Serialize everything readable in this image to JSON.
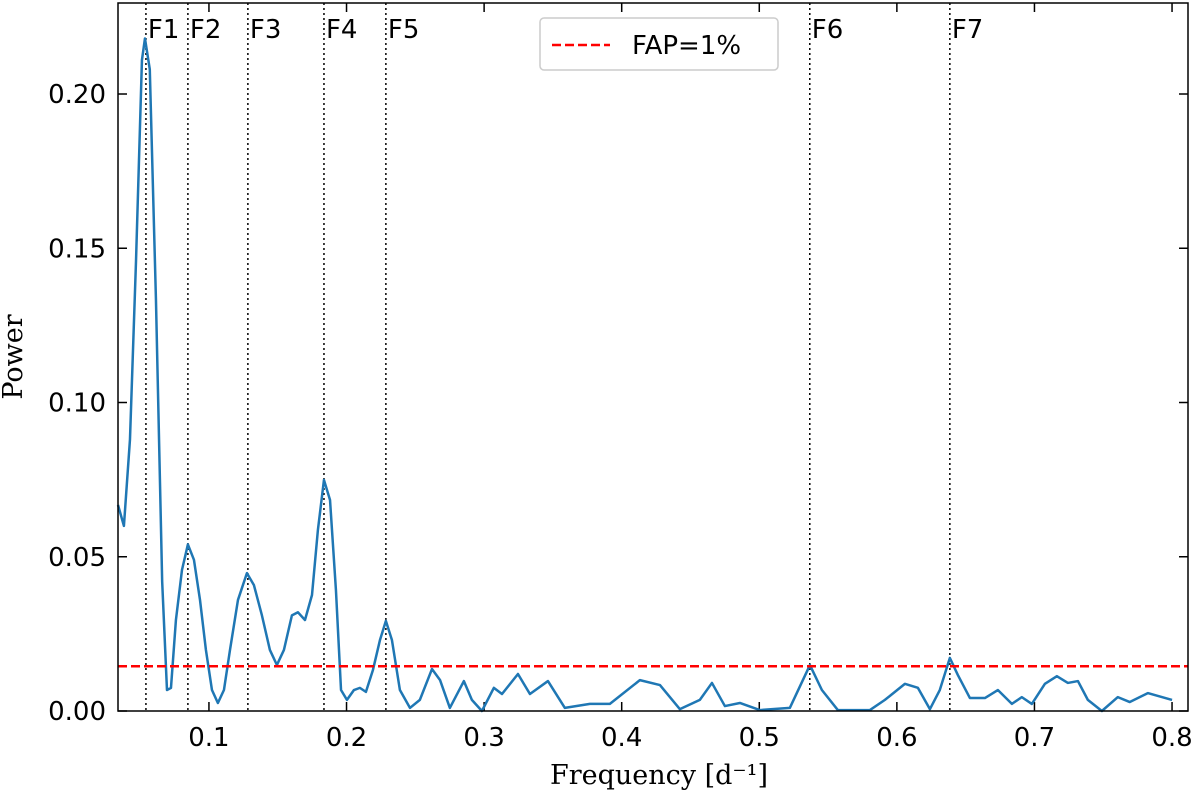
{
  "chart_data": {
    "type": "line",
    "xlabel": "Frequency [d⁻¹]",
    "ylabel": "Power",
    "xlim": [
      0.0339,
      0.8116
    ],
    "ylim": [
      0,
      0.2295
    ],
    "xticks": [
      0.1,
      0.2,
      0.3,
      0.4,
      0.5,
      0.6,
      0.7,
      0.8
    ],
    "yticks": [
      {
        "value": 0,
        "label": "0.00"
      },
      0.05,
      {
        "value": 0.1,
        "label": "0.10"
      },
      0.15,
      {
        "value": 0.2,
        "label": "0.20"
      }
    ],
    "legend": "upper center",
    "series": [
      {
        "color": "#1f77b4",
        "x": [
          0.0339,
          0.0382,
          0.0426,
          0.047,
          0.0513,
          0.0535,
          0.057,
          0.0615,
          0.066,
          0.0695,
          0.0724,
          0.076,
          0.0804,
          0.0847,
          0.0891,
          0.0935,
          0.0978,
          0.1022,
          0.1065,
          0.1109,
          0.1153,
          0.1211,
          0.1276,
          0.1327,
          0.1385,
          0.1443,
          0.1494,
          0.1545,
          0.1603,
          0.1647,
          0.1698,
          0.1749,
          0.1792,
          0.1836,
          0.188,
          0.1923,
          0.196,
          0.2003,
          0.2054,
          0.2097,
          0.2141,
          0.2192,
          0.2243,
          0.2286,
          0.233,
          0.2388,
          0.2461,
          0.2533,
          0.2621,
          0.268,
          0.2751,
          0.2853,
          0.2911,
          0.2984,
          0.3071,
          0.313,
          0.3246,
          0.3333,
          0.3464,
          0.3587,
          0.3769,
          0.3914,
          0.4132,
          0.4278,
          0.4423,
          0.4568,
          0.4656,
          0.475,
          0.4859,
          0.5004,
          0.5222,
          0.5368,
          0.5455,
          0.5571,
          0.5804,
          0.5913,
          0.6058,
          0.6153,
          0.624,
          0.6312,
          0.6385,
          0.6443,
          0.6531,
          0.664,
          0.6734,
          0.6836,
          0.6908,
          0.6981,
          0.7076,
          0.7163,
          0.7243,
          0.7316,
          0.7388,
          0.749,
          0.7606,
          0.7693,
          0.7824,
          0.8
        ],
        "values": [
          0.0668,
          0.06,
          0.088,
          0.146,
          0.211,
          0.218,
          0.208,
          0.133,
          0.042,
          0.0068,
          0.0075,
          0.0295,
          0.0457,
          0.054,
          0.049,
          0.036,
          0.0198,
          0.0068,
          0.0026,
          0.0068,
          0.0198,
          0.036,
          0.0447,
          0.0408,
          0.031,
          0.0198,
          0.0149,
          0.0198,
          0.031,
          0.032,
          0.0295,
          0.0376,
          0.0587,
          0.0749,
          0.0684,
          0.0392,
          0.0068,
          0.0036,
          0.0068,
          0.0075,
          0.0062,
          0.0133,
          0.023,
          0.0292,
          0.023,
          0.0068,
          0.001,
          0.0036,
          0.0136,
          0.01,
          0.001,
          0.0097,
          0.0036,
          0,
          0.0075,
          0.0055,
          0.012,
          0.0055,
          0.0097,
          0.001,
          0.0023,
          0.0023,
          0.01,
          0.0084,
          0.0006,
          0.0036,
          0.0091,
          0.0016,
          0.0026,
          0.0003,
          0.001,
          0.0149,
          0.0068,
          0.0003,
          0.0003,
          0.0036,
          0.0088,
          0.0075,
          0.0006,
          0.0068,
          0.0172,
          0.0117,
          0.0042,
          0.0042,
          0.0068,
          0.0023,
          0.0045,
          0.0023,
          0.0088,
          0.0113,
          0.0091,
          0.0097,
          0.0036,
          0,
          0.0045,
          0.0029,
          0.0058,
          0.0036
        ]
      }
    ],
    "hlines": [
      {
        "name": "FAP=1%",
        "value": 0.0145,
        "color": "#ff0000",
        "style": "dashed"
      }
    ],
    "vlines": [
      {
        "label": "F1",
        "x": 0.0542
      },
      {
        "label": "F2",
        "x": 0.0847
      },
      {
        "label": "F3",
        "x": 0.1283
      },
      {
        "label": "F4",
        "x": 0.1836
      },
      {
        "label": "F5",
        "x": 0.2286
      },
      {
        "label": "F6",
        "x": 0.5367
      },
      {
        "label": "F7",
        "x": 0.6385
      }
    ]
  }
}
